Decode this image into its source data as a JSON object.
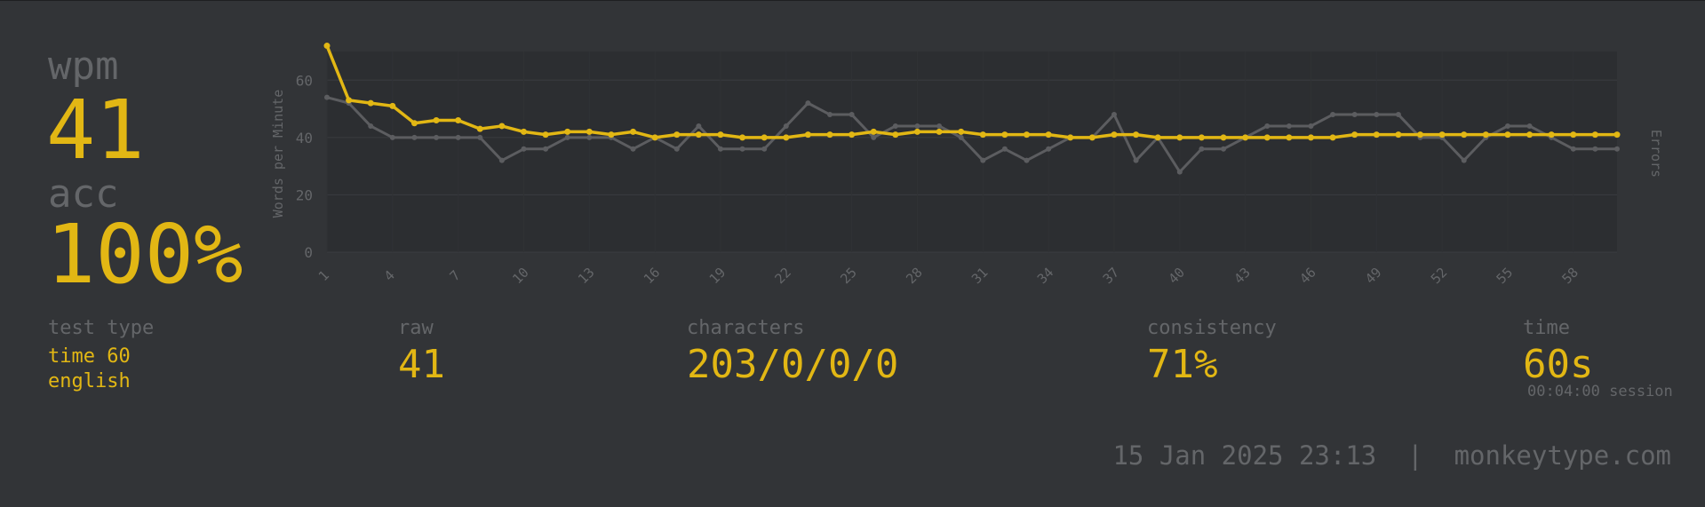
{
  "stats": {
    "wpm_label": "wpm",
    "wpm_value": "41",
    "acc_label": "acc",
    "acc_value": "100%"
  },
  "details": {
    "test_type_label": "test type",
    "test_type_line1": "time 60",
    "test_type_line2": "english",
    "raw_label": "raw",
    "raw_value": "41",
    "characters_label": "characters",
    "characters_value": "203/0/0/0",
    "consistency_label": "consistency",
    "consistency_value": "71%",
    "time_label": "time",
    "time_value": "60s",
    "session_text": "00:04:00 session"
  },
  "footer": {
    "datetime": "15 Jan 2025 23:13",
    "separator": "|",
    "site": "monkeytype.com"
  },
  "colors": {
    "background": "#323437",
    "main": "#e2b714",
    "sub": "#646669",
    "raw_line": "#5c5d60",
    "plot_bg": "#2c2e31"
  },
  "chart_data": {
    "type": "line",
    "ylabel": "Words per Minute",
    "y2label": "Errors",
    "ylim": [
      0,
      70
    ],
    "yticks": [
      0,
      20,
      40,
      60
    ],
    "xlim": [
      1,
      60
    ],
    "xtick_labels": [
      "1",
      "4",
      "7",
      "10",
      "13",
      "16",
      "19",
      "22",
      "25",
      "28",
      "31",
      "34",
      "37",
      "40",
      "43",
      "46",
      "49",
      "52",
      "55",
      "58"
    ],
    "grid": true,
    "x": [
      1,
      2,
      3,
      4,
      5,
      6,
      7,
      8,
      9,
      10,
      11,
      12,
      13,
      14,
      15,
      16,
      17,
      18,
      19,
      20,
      21,
      22,
      23,
      24,
      25,
      26,
      27,
      28,
      29,
      30,
      31,
      32,
      33,
      34,
      35,
      36,
      37,
      38,
      39,
      40,
      41,
      42,
      43,
      44,
      45,
      46,
      47,
      48,
      49,
      50,
      51,
      52,
      53,
      54,
      55,
      56,
      57,
      58,
      59,
      60
    ],
    "series": [
      {
        "role": "raw",
        "values": [
          54,
          52,
          44,
          40,
          40,
          40,
          40,
          40,
          32,
          36,
          36,
          40,
          40,
          40,
          36,
          40,
          36,
          44,
          36,
          36,
          36,
          44,
          52,
          48,
          48,
          40,
          44,
          44,
          44,
          40,
          32,
          36,
          32,
          36,
          40,
          40,
          48,
          32,
          40,
          28,
          36,
          36,
          40,
          44,
          44,
          44,
          48,
          48,
          48,
          48,
          40,
          40,
          32,
          40,
          44,
          44,
          40,
          36,
          36,
          36
        ]
      },
      {
        "role": "wpm",
        "values": [
          72,
          53,
          52,
          51,
          45,
          46,
          46,
          43,
          44,
          42,
          41,
          42,
          42,
          41,
          42,
          40,
          41,
          41,
          41,
          40,
          40,
          40,
          41,
          41,
          41,
          42,
          41,
          42,
          42,
          42,
          41,
          41,
          41,
          41,
          40,
          40,
          41,
          41,
          40,
          40,
          40,
          40,
          40,
          40,
          40,
          40,
          40,
          41,
          41,
          41,
          41,
          41,
          41,
          41,
          41,
          41,
          41,
          41,
          41,
          41
        ]
      }
    ]
  }
}
